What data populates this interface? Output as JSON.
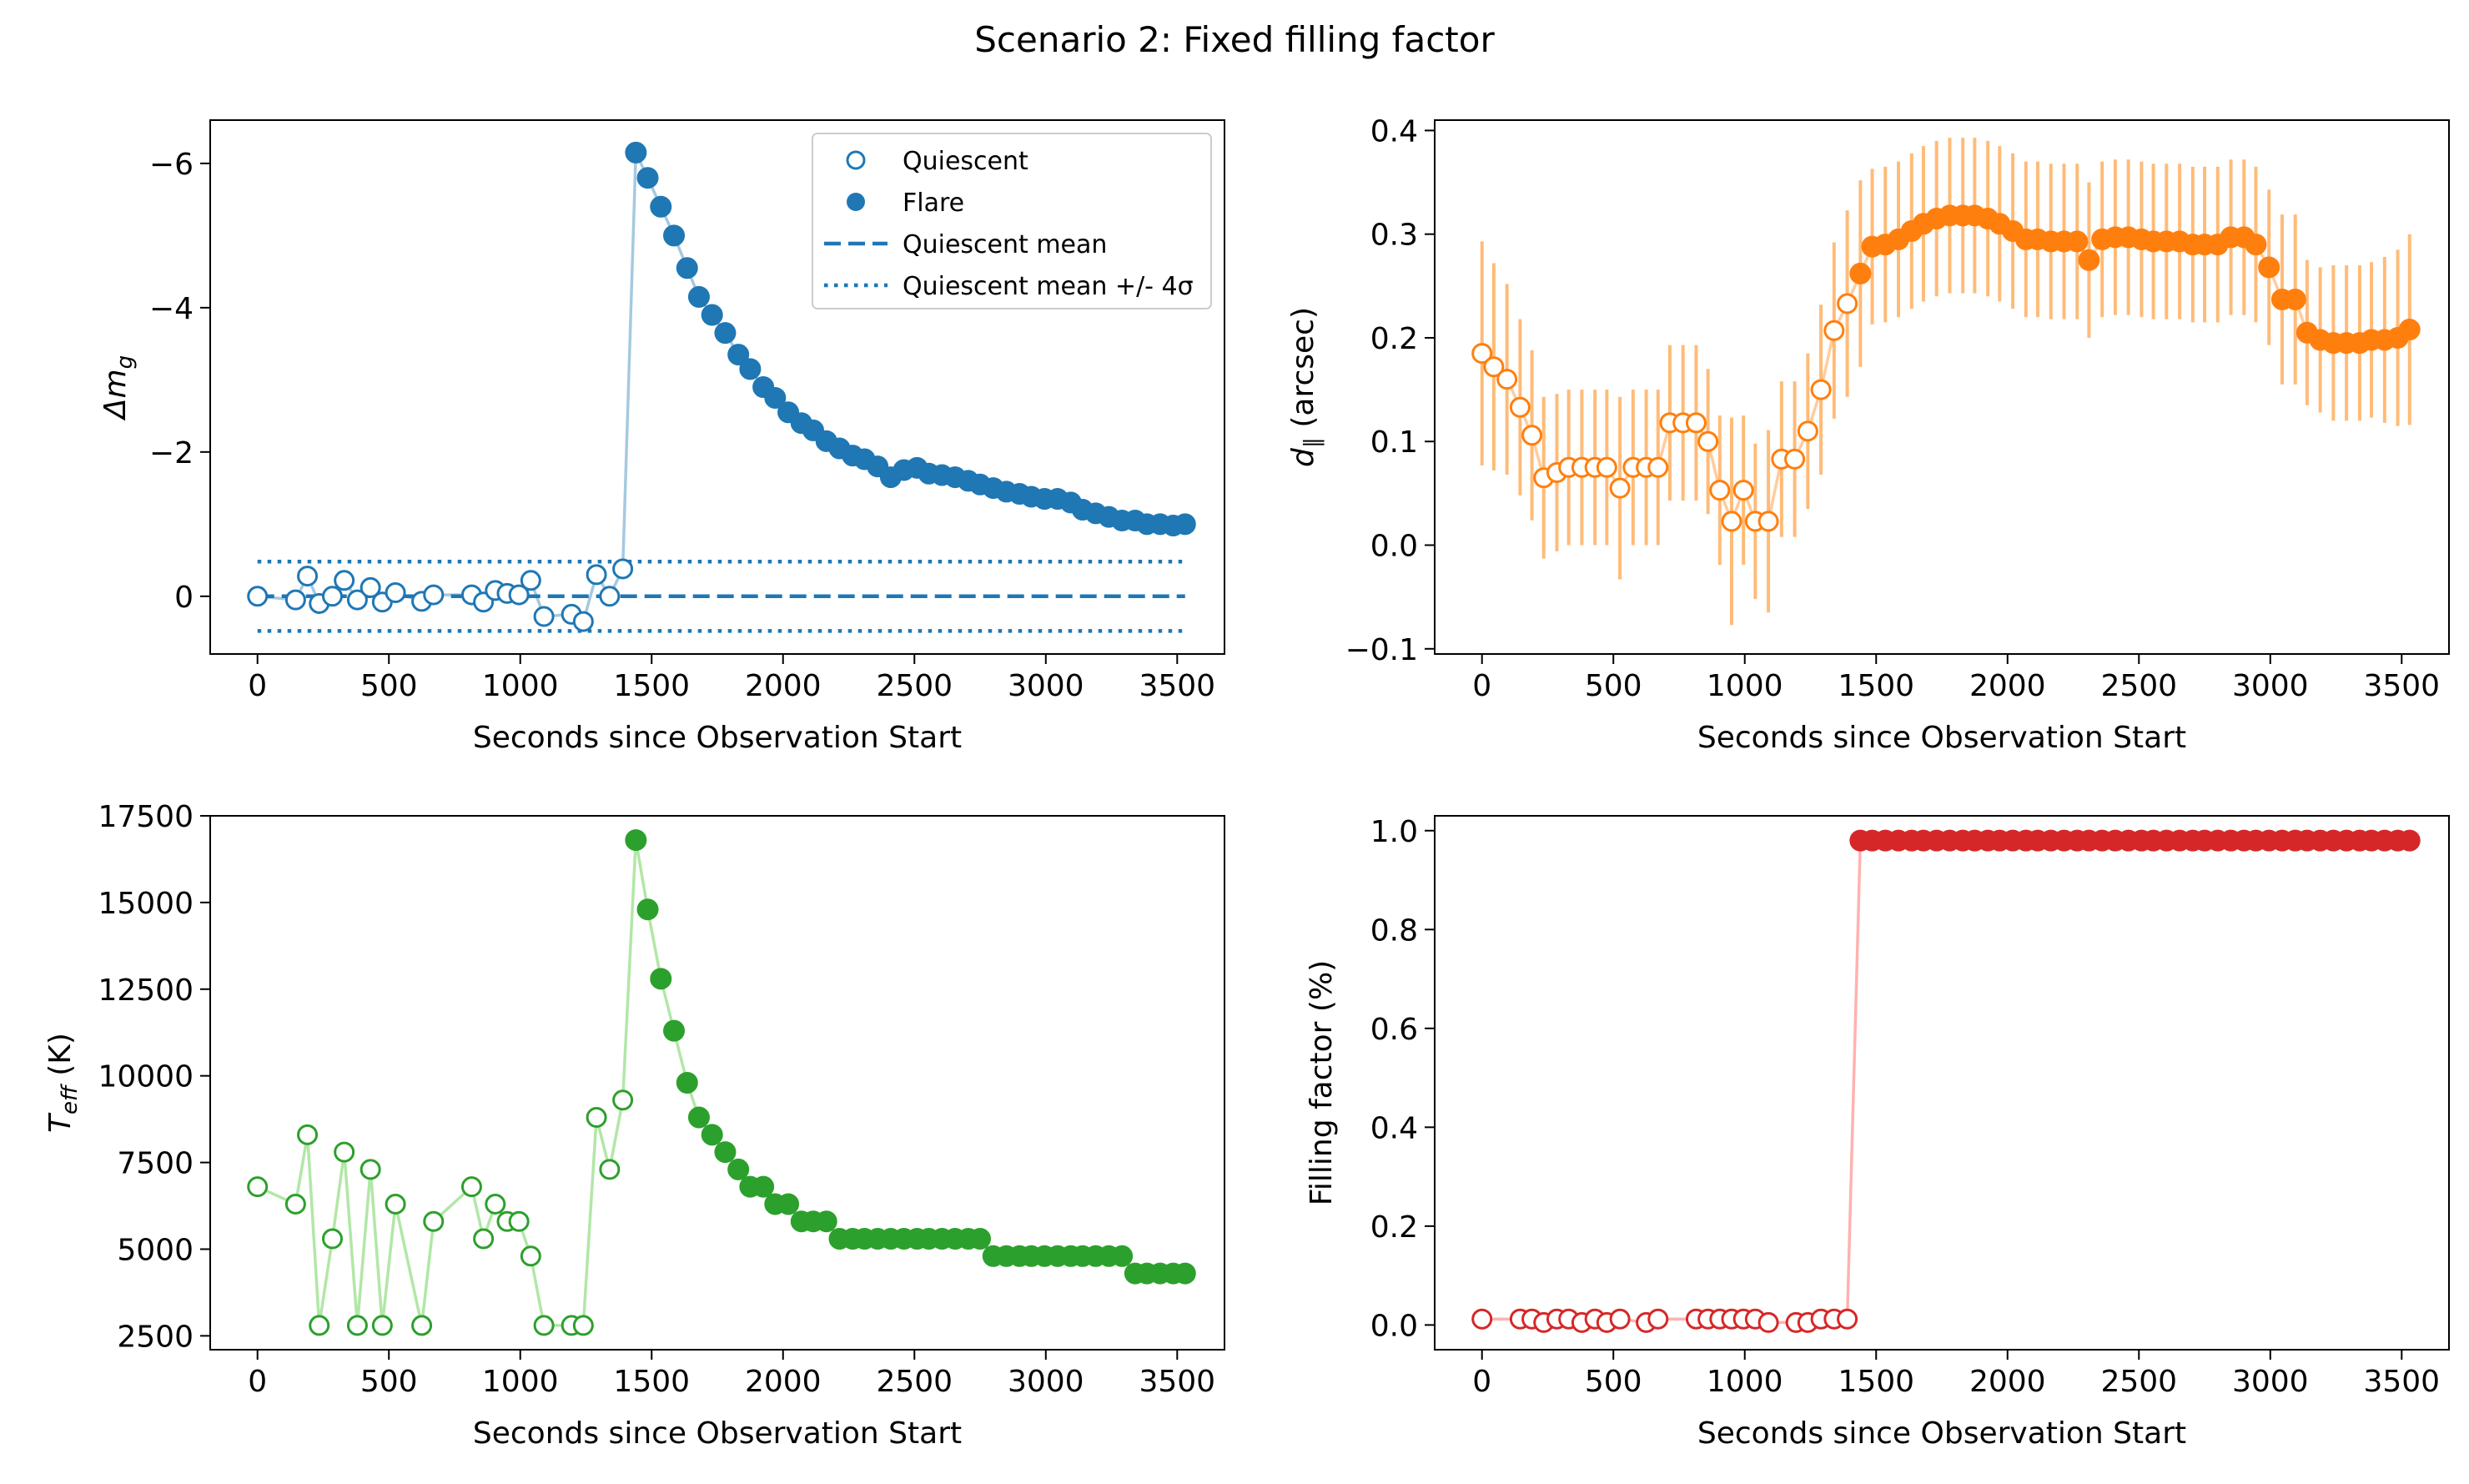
{
  "figure": {
    "title": "Scenario 2: Fixed filling factor"
  },
  "chart_data": [
    {
      "type": "scatter",
      "panel": "top-left",
      "xlabel": "Seconds since Observation Start",
      "ylabel": "Δm",
      "ylabel_sub": "g",
      "xlim": [
        -180,
        3680
      ],
      "ylim": [
        0.8,
        -6.6
      ],
      "y_inverted": true,
      "xticks": [
        0,
        500,
        1000,
        1500,
        2000,
        2500,
        3000,
        3500
      ],
      "xtick_labels": [
        "0",
        "500",
        "1000",
        "1500",
        "2000",
        "2500",
        "3000",
        "3500"
      ],
      "yticks": [
        -6,
        -4,
        -2,
        0
      ],
      "ytick_labels": [
        "−6",
        "−4",
        "−2",
        "0"
      ],
      "color": "#1f77b4",
      "legend_position": "upper right",
      "legend": {
        "quiescent": "Quiescent",
        "flare": "Flare",
        "mean": "Quiescent mean",
        "band": "Quiescent mean +/- 4σ"
      },
      "mean": 0.0,
      "band": [
        -0.48,
        0.48
      ],
      "series": [
        {
          "name": "Quiescent",
          "marker": "open",
          "x": [
            0,
            145,
            190,
            235,
            285,
            330,
            380,
            430,
            475,
            525,
            625,
            670,
            815,
            860,
            905,
            950,
            995,
            1040,
            1090,
            1195,
            1240,
            1290,
            1340,
            1390
          ],
          "y": [
            0.0,
            0.05,
            -0.28,
            0.1,
            0.0,
            -0.22,
            0.05,
            -0.12,
            0.08,
            -0.05,
            0.07,
            -0.02,
            -0.02,
            0.08,
            -0.08,
            -0.04,
            -0.02,
            -0.22,
            0.28,
            0.25,
            0.35,
            -0.3,
            0.0,
            -0.38
          ]
        },
        {
          "name": "Flare",
          "marker": "filled",
          "x": [
            1440,
            1485,
            1535,
            1585,
            1635,
            1680,
            1730,
            1780,
            1830,
            1875,
            1925,
            1970,
            2020,
            2070,
            2115,
            2165,
            2215,
            2265,
            2310,
            2360,
            2410,
            2460,
            2510,
            2555,
            2605,
            2655,
            2705,
            2750,
            2800,
            2850,
            2900,
            2945,
            2995,
            3045,
            3095,
            3140,
            3190,
            3240,
            3290,
            3340,
            3385,
            3435,
            3485,
            3530
          ],
          "y": [
            -6.15,
            -5.8,
            -5.4,
            -5.0,
            -4.55,
            -4.15,
            -3.9,
            -3.65,
            -3.35,
            -3.15,
            -2.9,
            -2.75,
            -2.55,
            -2.4,
            -2.3,
            -2.15,
            -2.05,
            -1.95,
            -1.9,
            -1.8,
            -1.65,
            -1.75,
            -1.78,
            -1.7,
            -1.68,
            -1.65,
            -1.6,
            -1.55,
            -1.5,
            -1.45,
            -1.42,
            -1.38,
            -1.35,
            -1.35,
            -1.3,
            -1.2,
            -1.15,
            -1.1,
            -1.05,
            -1.05,
            -1.0,
            -1.0,
            -0.98,
            -1.0
          ]
        }
      ]
    },
    {
      "type": "scatter",
      "panel": "top-right",
      "xlabel": "Seconds since Observation Start",
      "ylabel": "d",
      "ylabel_sub": "∥",
      "ylabel_suffix": " (arcsec)",
      "xlim": [
        -180,
        3680
      ],
      "ylim": [
        -0.105,
        0.41
      ],
      "xticks": [
        0,
        500,
        1000,
        1500,
        2000,
        2500,
        3000,
        3500
      ],
      "xtick_labels": [
        "0",
        "500",
        "1000",
        "1500",
        "2000",
        "2500",
        "3000",
        "3500"
      ],
      "yticks": [
        -0.1,
        0.0,
        0.1,
        0.2,
        0.3,
        0.4
      ],
      "ytick_labels": [
        "−0.1",
        "0.0",
        "0.1",
        "0.2",
        "0.3",
        "0.4"
      ],
      "color": "#ff7f0e",
      "errorbar_color": "#ffbb78",
      "series": [
        {
          "name": "Quiescent",
          "marker": "open",
          "x": [
            0,
            45,
            95,
            145,
            190,
            235,
            285,
            330,
            380,
            430,
            475,
            525,
            575,
            625,
            670,
            715,
            765,
            815,
            860,
            905,
            950,
            995,
            1040,
            1090,
            1140,
            1190,
            1240,
            1290,
            1340,
            1390
          ],
          "y": [
            0.185,
            0.172,
            0.16,
            0.133,
            0.106,
            0.065,
            0.07,
            0.075,
            0.075,
            0.075,
            0.075,
            0.055,
            0.075,
            0.075,
            0.075,
            0.118,
            0.118,
            0.118,
            0.1,
            0.053,
            0.023,
            0.053,
            0.023,
            0.023,
            0.083,
            0.083,
            0.11,
            0.15,
            0.207,
            0.233
          ],
          "yerr": [
            0.108,
            0.1,
            0.092,
            0.085,
            0.082,
            0.078,
            0.076,
            0.075,
            0.075,
            0.075,
            0.075,
            0.088,
            0.075,
            0.075,
            0.075,
            0.075,
            0.075,
            0.075,
            0.07,
            0.072,
            0.1,
            0.072,
            0.075,
            0.088,
            0.075,
            0.075,
            0.075,
            0.082,
            0.085,
            0.09
          ]
        },
        {
          "name": "Flare",
          "marker": "filled",
          "x": [
            1440,
            1485,
            1535,
            1585,
            1635,
            1680,
            1730,
            1780,
            1830,
            1875,
            1925,
            1970,
            2020,
            2070,
            2115,
            2165,
            2215,
            2265,
            2310,
            2360,
            2410,
            2460,
            2510,
            2555,
            2605,
            2655,
            2705,
            2750,
            2800,
            2850,
            2900,
            2945,
            2995,
            3045,
            3095,
            3140,
            3190,
            3240,
            3290,
            3340,
            3385,
            3435,
            3485,
            3530
          ],
          "y": [
            0.262,
            0.288,
            0.29,
            0.295,
            0.303,
            0.31,
            0.315,
            0.318,
            0.318,
            0.318,
            0.315,
            0.31,
            0.303,
            0.295,
            0.295,
            0.293,
            0.293,
            0.293,
            0.275,
            0.295,
            0.297,
            0.297,
            0.295,
            0.293,
            0.293,
            0.293,
            0.29,
            0.29,
            0.29,
            0.297,
            0.297,
            0.29,
            0.268,
            0.237,
            0.237,
            0.205,
            0.198,
            0.195,
            0.195,
            0.195,
            0.198,
            0.198,
            0.2,
            0.208
          ],
          "yerr": [
            0.09,
            0.075,
            0.075,
            0.075,
            0.075,
            0.075,
            0.075,
            0.075,
            0.075,
            0.075,
            0.075,
            0.075,
            0.075,
            0.075,
            0.075,
            0.075,
            0.075,
            0.075,
            0.075,
            0.075,
            0.075,
            0.075,
            0.075,
            0.075,
            0.075,
            0.075,
            0.075,
            0.075,
            0.075,
            0.075,
            0.075,
            0.075,
            0.075,
            0.082,
            0.082,
            0.07,
            0.07,
            0.075,
            0.075,
            0.075,
            0.075,
            0.08,
            0.085,
            0.092
          ]
        }
      ]
    },
    {
      "type": "line",
      "panel": "bottom-left",
      "xlabel": "Seconds since Observation Start",
      "ylabel": "T",
      "ylabel_sub": "eff",
      "ylabel_suffix": " (K)",
      "xlim": [
        -180,
        3680
      ],
      "ylim": [
        2100,
        17500
      ],
      "xticks": [
        0,
        500,
        1000,
        1500,
        2000,
        2500,
        3000,
        3500
      ],
      "xtick_labels": [
        "0",
        "500",
        "1000",
        "1500",
        "2000",
        "2500",
        "3000",
        "3500"
      ],
      "yticks": [
        2500,
        5000,
        7500,
        10000,
        12500,
        15000,
        17500
      ],
      "ytick_labels": [
        "2500",
        "5000",
        "7500",
        "10000",
        "12500",
        "15000",
        "17500"
      ],
      "color": "#2ca02c",
      "connecting_line_color": "#98df8a",
      "series": [
        {
          "name": "Quiescent",
          "marker": "open",
          "x": [
            0,
            145,
            190,
            235,
            285,
            330,
            380,
            430,
            475,
            525,
            625,
            670,
            815,
            860,
            905,
            950,
            995,
            1040,
            1090,
            1195,
            1240,
            1290,
            1340,
            1390
          ],
          "y": [
            6800,
            6300,
            8300,
            2800,
            5300,
            7800,
            2800,
            7300,
            2800,
            6300,
            2800,
            5800,
            6800,
            5300,
            6300,
            5800,
            5800,
            4800,
            2800,
            2800,
            2800,
            8800,
            7300,
            9300
          ]
        },
        {
          "name": "Flare",
          "marker": "filled",
          "x": [
            1440,
            1485,
            1535,
            1585,
            1635,
            1680,
            1730,
            1780,
            1830,
            1875,
            1925,
            1970,
            2020,
            2070,
            2115,
            2165,
            2215,
            2265,
            2310,
            2360,
            2410,
            2460,
            2510,
            2555,
            2605,
            2655,
            2705,
            2750,
            2800,
            2850,
            2900,
            2945,
            2995,
            3045,
            3095,
            3140,
            3190,
            3240,
            3290,
            3340,
            3385,
            3435,
            3485,
            3530
          ],
          "y": [
            16800,
            14800,
            12800,
            11300,
            9800,
            8800,
            8300,
            7800,
            7300,
            6800,
            6800,
            6300,
            6300,
            5800,
            5800,
            5800,
            5300,
            5300,
            5300,
            5300,
            5300,
            5300,
            5300,
            5300,
            5300,
            5300,
            5300,
            5300,
            4800,
            4800,
            4800,
            4800,
            4800,
            4800,
            4800,
            4800,
            4800,
            4800,
            4800,
            4300,
            4300,
            4300,
            4300,
            4300
          ]
        }
      ]
    },
    {
      "type": "line",
      "panel": "bottom-right",
      "xlabel": "Seconds since Observation Start",
      "ylabel": "Filling factor (%)",
      "xlim": [
        -180,
        3680
      ],
      "ylim": [
        -0.05,
        1.03
      ],
      "xticks": [
        0,
        500,
        1000,
        1500,
        2000,
        2500,
        3000,
        3500
      ],
      "xtick_labels": [
        "0",
        "500",
        "1000",
        "1500",
        "2000",
        "2500",
        "3000",
        "3500"
      ],
      "yticks": [
        0.0,
        0.2,
        0.4,
        0.6,
        0.8,
        1.0
      ],
      "ytick_labels": [
        "0.0",
        "0.2",
        "0.4",
        "0.6",
        "0.8",
        "1.0"
      ],
      "color": "#d62728",
      "connecting_line_color": "#ff9896",
      "series": [
        {
          "name": "Quiescent",
          "marker": "open",
          "x": [
            0,
            145,
            190,
            235,
            285,
            330,
            380,
            430,
            475,
            525,
            625,
            670,
            815,
            860,
            905,
            950,
            995,
            1040,
            1090,
            1195,
            1240,
            1290,
            1340,
            1390
          ],
          "y": [
            0.012,
            0.012,
            0.012,
            0.005,
            0.012,
            0.012,
            0.005,
            0.012,
            0.005,
            0.012,
            0.005,
            0.012,
            0.012,
            0.012,
            0.012,
            0.012,
            0.012,
            0.012,
            0.005,
            0.005,
            0.005,
            0.012,
            0.012,
            0.012
          ]
        },
        {
          "name": "Flare",
          "marker": "filled",
          "x": [
            1440,
            1485,
            1535,
            1585,
            1635,
            1680,
            1730,
            1780,
            1830,
            1875,
            1925,
            1970,
            2020,
            2070,
            2115,
            2165,
            2215,
            2265,
            2310,
            2360,
            2410,
            2460,
            2510,
            2555,
            2605,
            2655,
            2705,
            2750,
            2800,
            2850,
            2900,
            2945,
            2995,
            3045,
            3095,
            3140,
            3190,
            3240,
            3290,
            3340,
            3385,
            3435,
            3485,
            3530
          ],
          "y": [
            0.98,
            0.98,
            0.98,
            0.98,
            0.98,
            0.98,
            0.98,
            0.98,
            0.98,
            0.98,
            0.98,
            0.98,
            0.98,
            0.98,
            0.98,
            0.98,
            0.98,
            0.98,
            0.98,
            0.98,
            0.98,
            0.98,
            0.98,
            0.98,
            0.98,
            0.98,
            0.98,
            0.98,
            0.98,
            0.98,
            0.98,
            0.98,
            0.98,
            0.98,
            0.98,
            0.98,
            0.98,
            0.98,
            0.98,
            0.98,
            0.98,
            0.98,
            0.98,
            0.98
          ]
        }
      ]
    }
  ]
}
